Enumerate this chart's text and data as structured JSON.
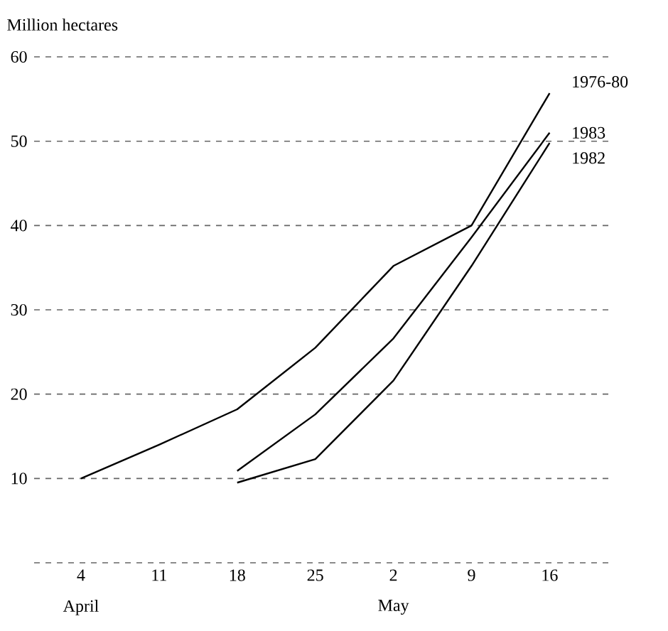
{
  "chart_data": {
    "type": "line",
    "ylabel": "Million hectares",
    "categories": [
      "4",
      "11",
      "18",
      "25",
      "2",
      "9",
      "16"
    ],
    "annotations": [
      "April",
      "May"
    ],
    "series": [
      {
        "name": "1976-80",
        "color": "#000000",
        "values": [
          10.0,
          14.0,
          18.2,
          25.5,
          35.2,
          40.0,
          55.7
        ]
      },
      {
        "name": "1983",
        "color": "#000000",
        "values": [
          null,
          null,
          10.9,
          17.6,
          26.6,
          38.6,
          51.0
        ]
      },
      {
        "name": "1982",
        "color": "#000000",
        "values": [
          null,
          null,
          9.5,
          12.3,
          21.6,
          35.2,
          49.8
        ]
      }
    ],
    "ylim": [
      0,
      60
    ],
    "yticks": [
      {
        "value": 0,
        "label": null
      },
      10,
      20,
      30,
      40,
      50,
      60
    ],
    "grid": "y",
    "marker": "none",
    "line_style": "solid"
  }
}
